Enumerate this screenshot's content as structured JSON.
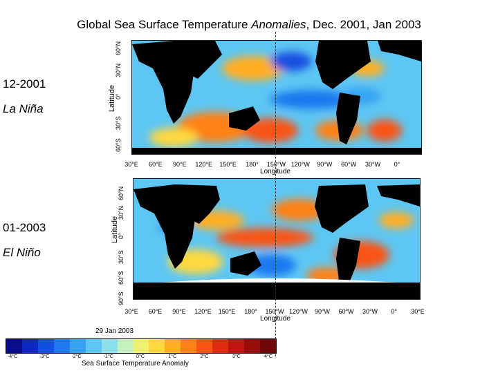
{
  "title": {
    "prefix": "Global Sea Surface Temperature ",
    "italic": "Anomalies",
    "suffix": ", Dec. 2001, Jan 2003"
  },
  "panels": [
    {
      "id": "top",
      "period": "12-2001",
      "phase": "La Niña",
      "lat_axis_title": "Latitude",
      "lat_ticks": [
        "60°N",
        "30°N",
        "0°",
        "30°S",
        "60°S"
      ],
      "lon_ticks": [
        "30°E",
        "60°E",
        "90°E",
        "120°E",
        "150°E",
        "180°",
        "150°W",
        "120°W",
        "90°W",
        "60°W",
        "30°W",
        "0°"
      ],
      "lon_axis_title": "Longitude"
    },
    {
      "id": "bottom",
      "period": "01-2003",
      "phase": "El Niño",
      "lat_axis_title": "Latitude",
      "lat_ticks": [
        "60°N",
        "30°N",
        "0°",
        "30°S",
        "60°S",
        "90°S"
      ],
      "lon_ticks": [
        "30°E",
        "60°E",
        "90°E",
        "120°E",
        "150°E",
        "180°",
        "150°W",
        "120°W",
        "90°W",
        "60°W",
        "30°W",
        "0°",
        "30°E"
      ],
      "lon_axis_title": "Longitude"
    }
  ],
  "colorbar": {
    "date": "29 Jan 2003",
    "title": "Sea Surface Temperature Anomaly",
    "ticks": [
      "-4°C",
      "-3°C",
      "-2°C",
      "-1°C",
      "0°C",
      "1°C",
      "2°C",
      "3°C",
      "4°C"
    ],
    "colors": [
      "#0a0a8c",
      "#1028c0",
      "#1450e0",
      "#1e78f0",
      "#36a2f4",
      "#5ec6f2",
      "#8ee0e8",
      "#c4f0c0",
      "#f0f070",
      "#ffd840",
      "#ffae22",
      "#ff8218",
      "#f85414",
      "#e02c10",
      "#c01410",
      "#980c0c",
      "#700808"
    ]
  },
  "palette": {
    "land": "#000000",
    "ocean_base": "#5ec6f2"
  }
}
